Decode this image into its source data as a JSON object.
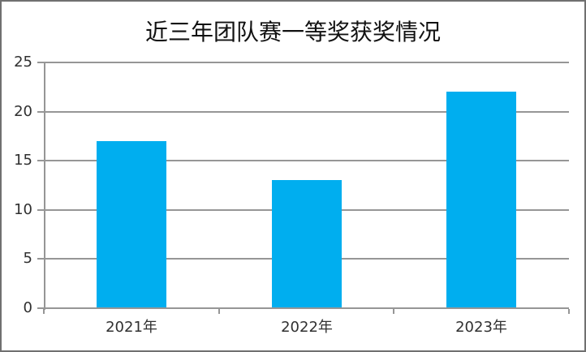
{
  "window": {
    "background": "#ffffff",
    "border_color": "#707070"
  },
  "chart_data": {
    "type": "bar",
    "title": "近三年团队赛一等奖获奖情况",
    "categories": [
      "2021年",
      "2022年",
      "2023年"
    ],
    "values": [
      17,
      13,
      22
    ],
    "xlabel": "",
    "ylabel": "",
    "ylim": [
      0,
      25
    ],
    "yticks": [
      0,
      5,
      10,
      15,
      20,
      25
    ],
    "grid": "horizontal",
    "legend": "none",
    "bar_color": "#00AEEF",
    "gridline_color": "#969696",
    "axis_color": "#969696",
    "tick_label_color": "#303030",
    "title_color": "#111111"
  }
}
